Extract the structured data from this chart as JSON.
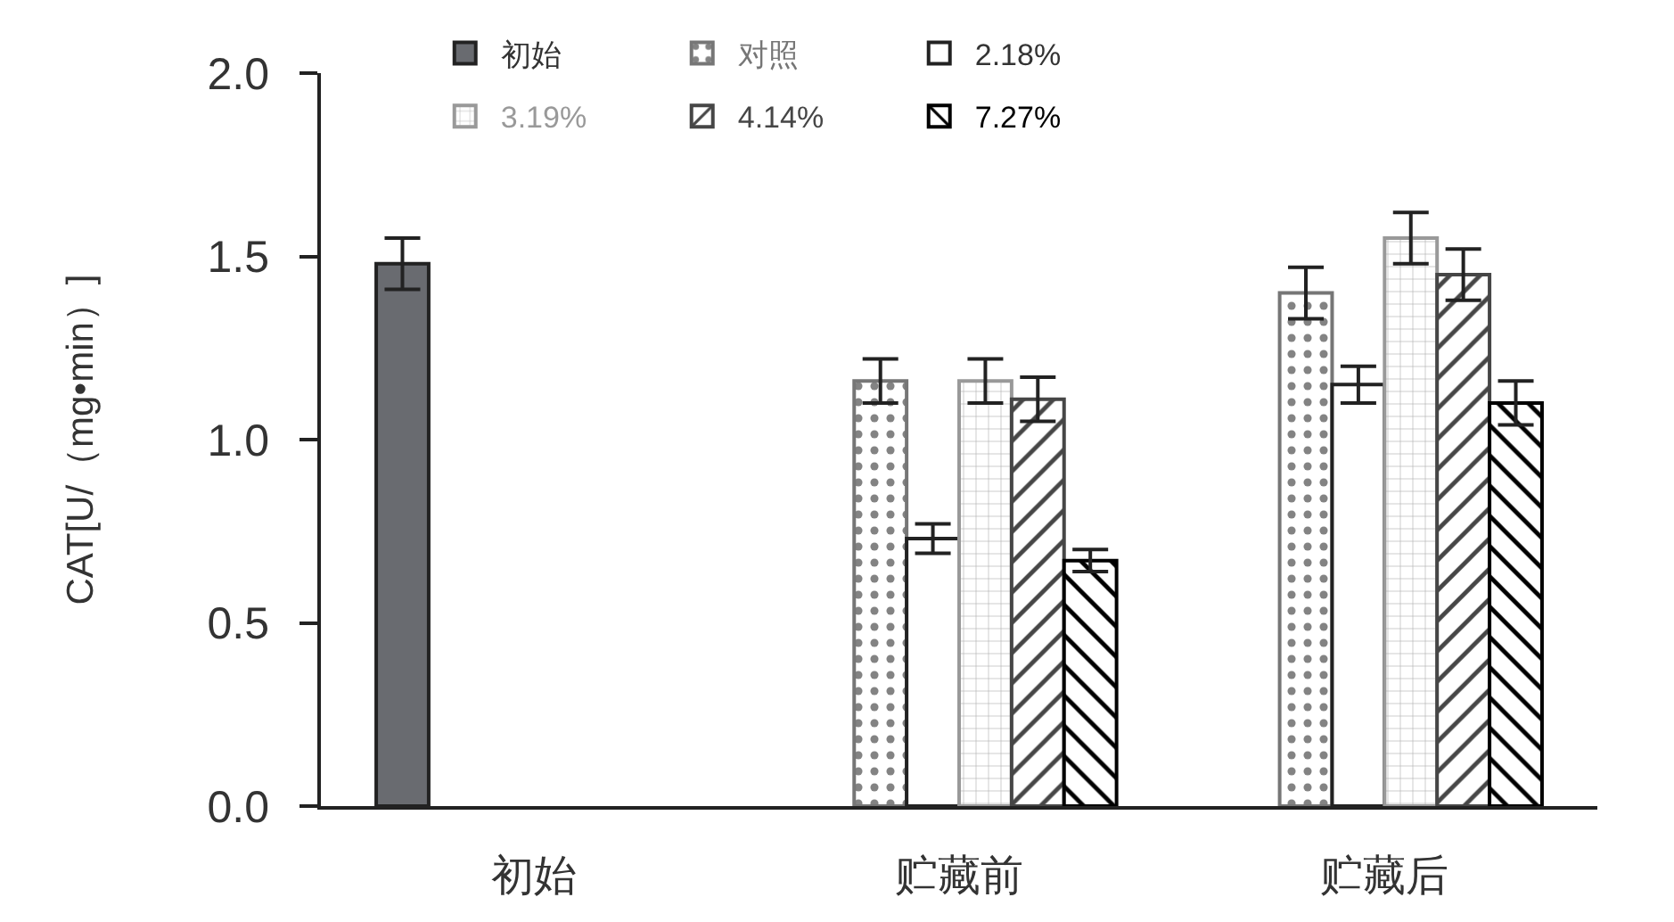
{
  "chart_data": {
    "type": "bar",
    "ylabel": "CAT[U/（mg•min）]",
    "categories": [
      "初始",
      "贮藏前",
      "贮藏后"
    ],
    "series": [
      {
        "name": "初始",
        "color": "#696b70",
        "values": [
          1.48,
          null,
          null
        ],
        "errors": [
          0.07,
          null,
          null
        ]
      },
      {
        "name": "对照",
        "color": "#767676",
        "values": [
          null,
          1.16,
          1.4
        ],
        "errors": [
          null,
          0.06,
          0.07
        ]
      },
      {
        "name": "2.18%",
        "color": "#ffffff",
        "values": [
          null,
          0.73,
          1.15
        ],
        "errors": [
          null,
          0.04,
          0.05
        ]
      },
      {
        "name": "3.19%",
        "color": "#999999",
        "values": [
          null,
          1.16,
          1.55
        ],
        "errors": [
          null,
          0.06,
          0.07
        ]
      },
      {
        "name": "4.14%",
        "color": "#464646",
        "values": [
          null,
          1.11,
          1.45
        ],
        "errors": [
          null,
          0.06,
          0.07
        ]
      },
      {
        "name": "7.27%",
        "color": "#000000",
        "values": [
          null,
          0.67,
          1.1
        ],
        "errors": [
          null,
          0.03,
          0.06
        ]
      }
    ],
    "ylim": [
      0,
      2
    ],
    "yticks": [
      {
        "value": 0,
        "label": "0.0"
      },
      0.5,
      {
        "value": 1,
        "label": "1.0"
      },
      1.5,
      {
        "value": 2,
        "label": "2.0"
      }
    ],
    "legend": "top"
  }
}
